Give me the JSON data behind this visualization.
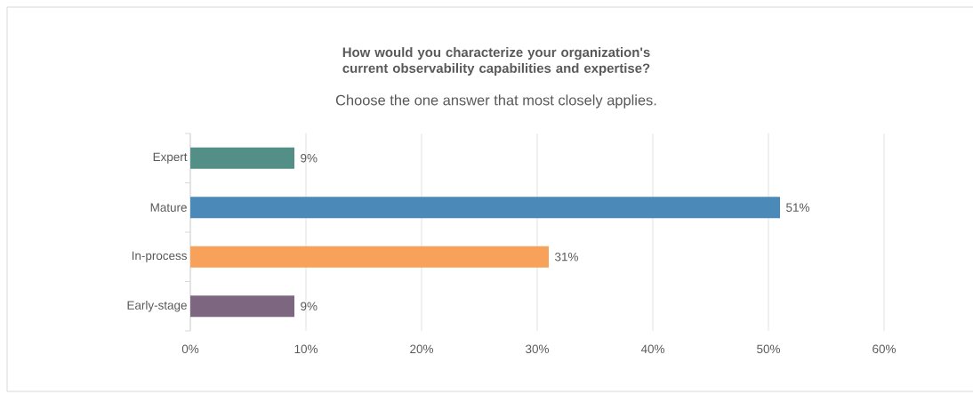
{
  "chart_data": {
    "type": "bar",
    "orientation": "horizontal",
    "title": "How would you characterize your organization's current observability capabilities and expertise?",
    "subtitle": "Choose the one answer that most closely applies.",
    "categories": [
      "Expert",
      "Mature",
      "In-process",
      "Early-stage"
    ],
    "values": [
      9,
      51,
      31,
      9
    ],
    "colors": [
      "#548f87",
      "#4a89b8",
      "#f8a15a",
      "#7d6680"
    ],
    "value_labels": [
      "9%",
      "51%",
      "31%",
      "9%"
    ],
    "xlim": [
      0,
      60
    ],
    "xticks": [
      {
        "value": 0,
        "label": "0%"
      },
      {
        "value": 10,
        "label": "10%"
      },
      {
        "value": 20,
        "label": "20%"
      },
      {
        "value": 30,
        "label": "30%"
      },
      {
        "value": 40,
        "label": "40%"
      },
      {
        "value": 50,
        "label": "50%"
      },
      {
        "value": 60,
        "label": "60%"
      }
    ],
    "grid": "x"
  }
}
